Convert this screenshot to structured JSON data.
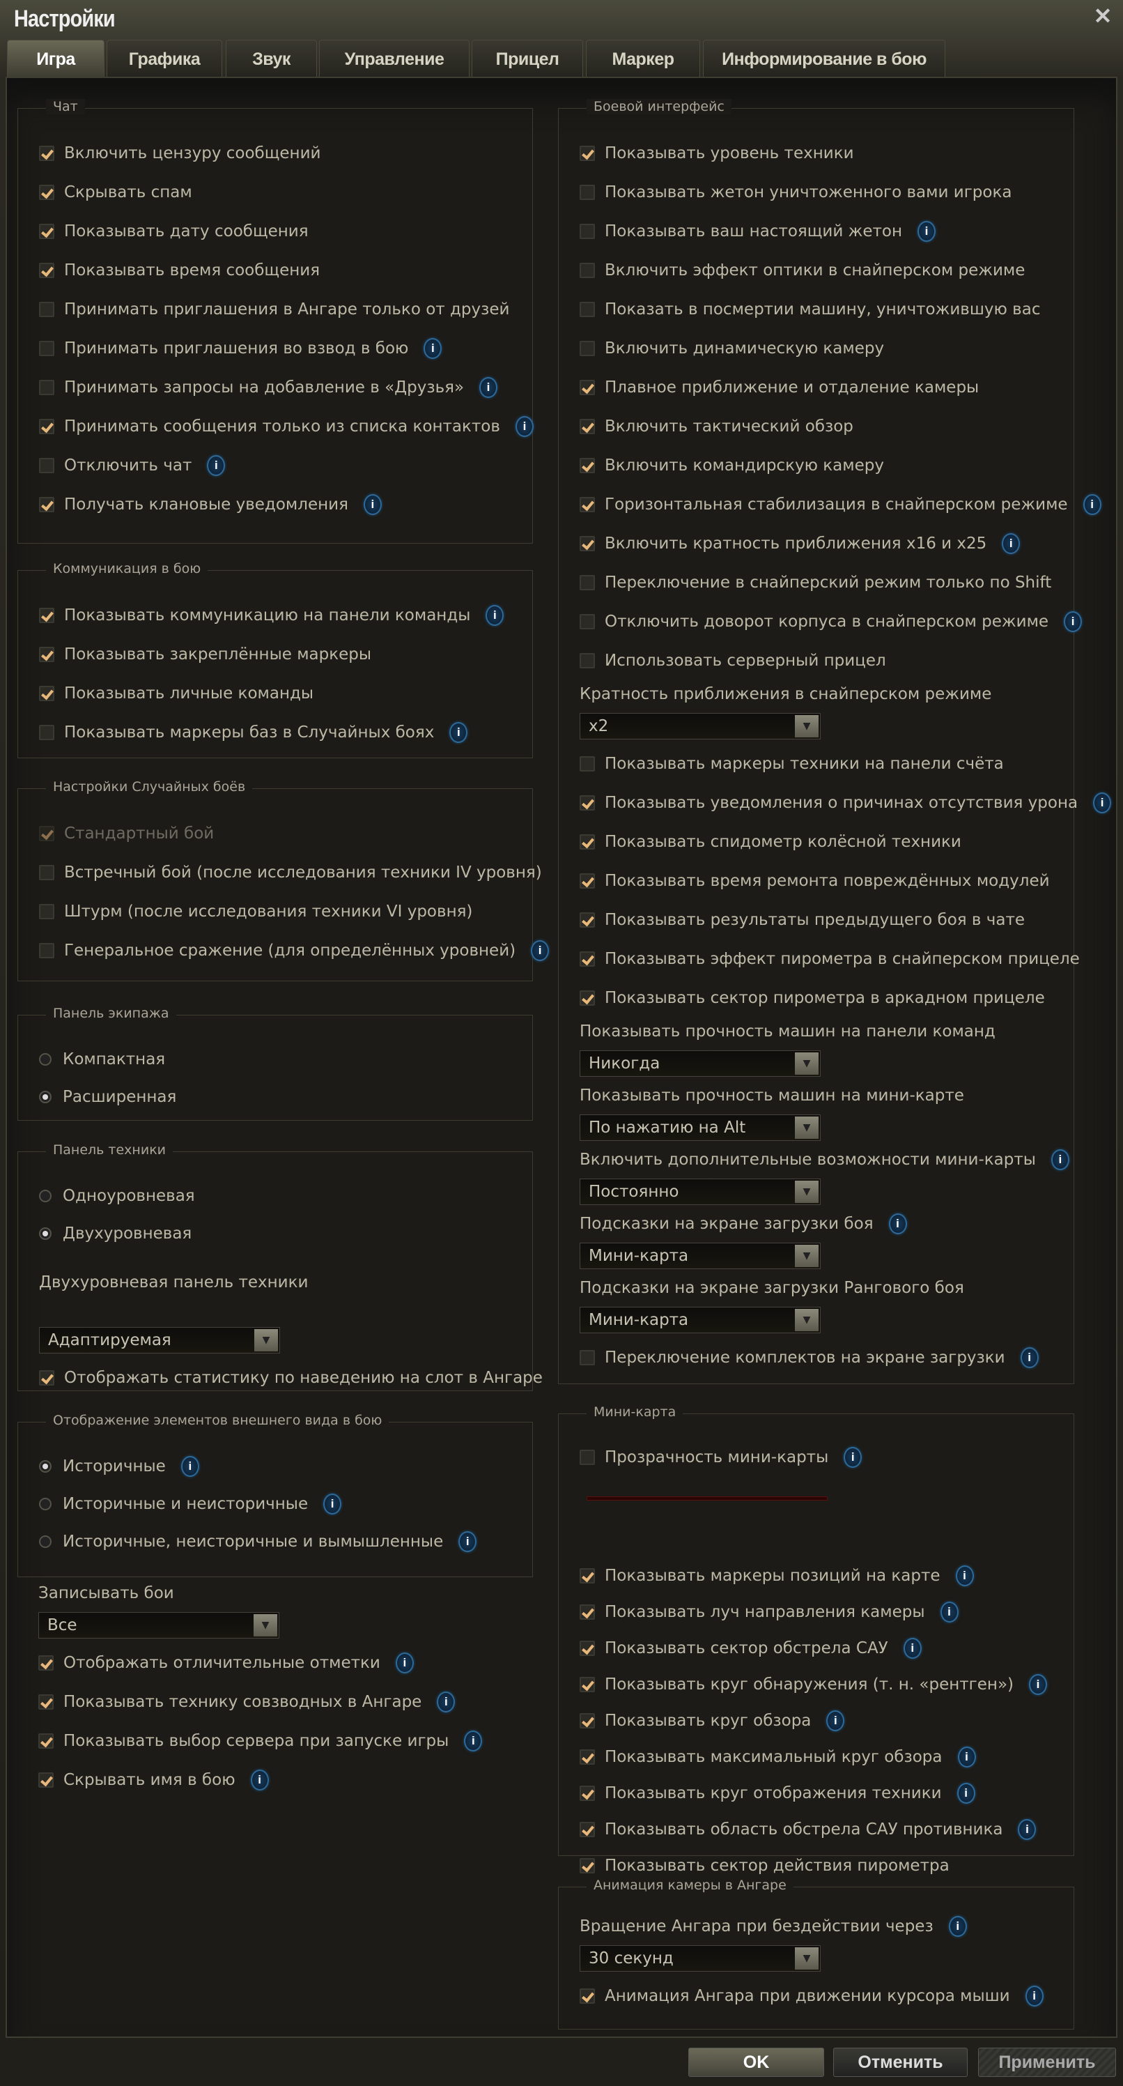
{
  "window": {
    "title": "Настройки",
    "close_icon": "close-icon"
  },
  "tabs": [
    {
      "label": "Игра",
      "active": true
    },
    {
      "label": "Графика"
    },
    {
      "label": "Звук"
    },
    {
      "label": "Управление"
    },
    {
      "label": "Прицел"
    },
    {
      "label": "Маркер"
    },
    {
      "label": "Информирование в бою"
    }
  ],
  "groups": [
    {
      "title": "Чат",
      "items": [
        {
          "t": "cb",
          "label": "Включить цензуру сообщений",
          "on": true
        },
        {
          "t": "cb",
          "label": "Скрывать спам",
          "on": true
        },
        {
          "t": "cb",
          "label": "Показывать дату сообщения",
          "on": true
        },
        {
          "t": "cb",
          "label": "Показывать время сообщения",
          "on": true
        },
        {
          "t": "cb",
          "label": "Принимать приглашения в Ангаре только от друзей",
          "on": false
        },
        {
          "t": "cb",
          "label": "Принимать приглашения во взвод в бою",
          "on": false,
          "info": true
        },
        {
          "t": "cb",
          "label": "Принимать запросы на добавление в «Друзья»",
          "on": false,
          "info": true
        },
        {
          "t": "cb",
          "label": "Принимать сообщения только из списка контактов",
          "on": true,
          "info": true
        },
        {
          "t": "cb",
          "label": "Отключить чат",
          "on": false,
          "info": true
        },
        {
          "t": "cb",
          "label": "Получать клановые уведомления",
          "on": true,
          "info": true
        }
      ]
    },
    {
      "title": "Коммуникация в бою",
      "items": [
        {
          "t": "cb",
          "label": "Показывать коммуникацию на панели команды",
          "on": true,
          "info": true
        },
        {
          "t": "cb",
          "label": "Показывать закреплённые маркеры",
          "on": true
        },
        {
          "t": "cb",
          "label": "Показывать личные команды",
          "on": true
        },
        {
          "t": "cb",
          "label": "Показывать маркеры баз в Случайных боях",
          "on": false,
          "info": true
        }
      ]
    },
    {
      "title": "Настройки Случайных боёв",
      "items": [
        {
          "t": "cb",
          "label": "Стандартный бой",
          "on": true,
          "disabled": true
        },
        {
          "t": "cb",
          "label": "Встречный бой (после исследования техники IV уровня)",
          "on": false
        },
        {
          "t": "cb",
          "label": "Штурм (после исследования техники VI уровня)",
          "on": false
        },
        {
          "t": "cb",
          "label": "Генеральное сражение (для определённых уровней)",
          "on": false,
          "info": true
        }
      ]
    },
    {
      "title": "Панель экипажа",
      "items": [
        {
          "t": "rd",
          "label": "Компактная",
          "on": false
        },
        {
          "t": "rd",
          "label": "Расширенная",
          "on": true
        }
      ]
    },
    {
      "title": "Панель техники",
      "items": [
        {
          "t": "rd",
          "label": "Одноуровневая",
          "on": false
        },
        {
          "t": "rd",
          "label": "Двухуровневая",
          "on": true
        },
        {
          "t": "sp",
          "label": "Двухуровневая панель техники"
        },
        {
          "t": "dd",
          "value": "Адаптируемая"
        },
        {
          "t": "cb",
          "label": "Отображать статистику по наведению на слот в Ангаре",
          "on": true
        }
      ]
    },
    {
      "title": "Отображение элементов внешнего вида в бою",
      "items": [
        {
          "t": "rd",
          "label": "Историчные",
          "on": true,
          "info": true
        },
        {
          "t": "rd",
          "label": "Историчные и неисторичные",
          "on": false,
          "info": true
        },
        {
          "t": "rd",
          "label": "Историчные, неисторичные и вымышленные",
          "on": false,
          "info": true
        }
      ]
    },
    {
      "title": "",
      "items": [
        {
          "t": "lbl",
          "label": "Записывать бои"
        },
        {
          "t": "dd",
          "value": "Все"
        },
        {
          "t": "cb",
          "label": "Отображать отличительные отметки",
          "on": true,
          "info": true
        },
        {
          "t": "cb",
          "label": "Показывать технику совзводных в Ангаре",
          "on": true,
          "info": true
        },
        {
          "t": "cb",
          "label": "Показывать выбор сервера при запуске игры",
          "on": true,
          "info": true
        },
        {
          "t": "cb",
          "label": "Скрывать имя в бою",
          "on": true,
          "info": true
        }
      ]
    },
    {
      "title": "Боевой интерфейс",
      "items": [
        {
          "t": "cb",
          "label": "Показывать уровень техники",
          "on": true
        },
        {
          "t": "cb",
          "label": "Показывать жетон уничтоженного вами игрока",
          "on": false
        },
        {
          "t": "cb",
          "label": "Показывать ваш настоящий жетон",
          "on": false,
          "info": true
        },
        {
          "t": "cb",
          "label": "Включить эффект оптики в снайперском режиме",
          "on": false
        },
        {
          "t": "cb",
          "label": "Показать в посмертии машину, уничтожившую вас",
          "on": false
        },
        {
          "t": "cb",
          "label": "Включить динамическую камеру",
          "on": false
        },
        {
          "t": "cb",
          "label": "Плавное приближение и отдаление камеры",
          "on": true
        },
        {
          "t": "cb",
          "label": "Включить тактический обзор",
          "on": true
        },
        {
          "t": "cb",
          "label": "Включить командирскую камеру",
          "on": true
        },
        {
          "t": "cb",
          "label": "Горизонтальная стабилизация в снайперском режиме",
          "on": true,
          "info": true
        },
        {
          "t": "cb",
          "label": "Включить кратность приближения x16 и x25",
          "on": true,
          "info": true
        },
        {
          "t": "cb",
          "label": "Переключение в снайперский режим только по Shift",
          "on": false
        },
        {
          "t": "cb",
          "label": "Отключить доворот корпуса в снайперском режиме",
          "on": false,
          "info": true
        },
        {
          "t": "cb",
          "label": "Использовать серверный прицел",
          "on": false
        },
        {
          "t": "lbl",
          "label": "Кратность приближения в снайперском режиме"
        },
        {
          "t": "dd",
          "value": "x2"
        },
        {
          "t": "cb",
          "label": "Показывать маркеры техники на панели счёта",
          "on": false
        },
        {
          "t": "cb",
          "label": "Показывать уведомления о причинах отсутствия урона",
          "on": true,
          "info": true
        },
        {
          "t": "cb",
          "label": "Показывать спидометр колёсной техники",
          "on": true
        },
        {
          "t": "cb",
          "label": "Показывать время ремонта повреждённых модулей",
          "on": true
        },
        {
          "t": "cb",
          "label": "Показывать результаты предыдущего боя в чате",
          "on": true
        },
        {
          "t": "cb",
          "label": "Показывать эффект пирометра в снайперском прицеле",
          "on": true
        },
        {
          "t": "cb",
          "label": "Показывать сектор пирометра в аркадном прицеле",
          "on": true
        },
        {
          "t": "lbl",
          "label": "Показывать прочность машин на панели команд"
        },
        {
          "t": "dd",
          "value": "Никогда"
        },
        {
          "t": "lbl",
          "label": "Показывать прочность машин на мини-карте"
        },
        {
          "t": "dd",
          "value": "По нажатию на Alt"
        },
        {
          "t": "lbl",
          "label": "Включить дополнительные возможности мини-карты",
          "info": true
        },
        {
          "t": "dd",
          "value": "Постоянно"
        },
        {
          "t": "lbl",
          "label": "Подсказки на экране загрузки боя",
          "info": true
        },
        {
          "t": "dd",
          "value": "Мини-карта"
        },
        {
          "t": "lbl",
          "label": "Подсказки на экране загрузки Рангового боя"
        },
        {
          "t": "dd",
          "value": "Мини-карта"
        },
        {
          "t": "cb",
          "label": "Переключение комплектов на экране загрузки",
          "on": false,
          "info": true
        }
      ]
    },
    {
      "title": "Мини-карта",
      "items": [
        {
          "t": "cb",
          "label": "Прозрачность мини-карты",
          "on": false,
          "info": true
        },
        {
          "t": "slider",
          "value": 0
        },
        {
          "t": "cb",
          "label": "Показывать маркеры позиций на карте",
          "on": true,
          "info": true
        },
        {
          "t": "cb",
          "label": "Показывать луч направления камеры",
          "on": true,
          "info": true
        },
        {
          "t": "cb",
          "label": "Показывать сектор обстрела САУ",
          "on": true,
          "info": true
        },
        {
          "t": "cb",
          "label": "Показывать круг обнаружения (т. н. «рентген»)",
          "on": true,
          "info": true
        },
        {
          "t": "cb",
          "label": "Показывать круг обзора",
          "on": true,
          "info": true
        },
        {
          "t": "cb",
          "label": "Показывать максимальный круг обзора",
          "on": true,
          "info": true
        },
        {
          "t": "cb",
          "label": "Показывать круг отображения техники",
          "on": true,
          "info": true
        },
        {
          "t": "cb",
          "label": "Показывать область обстрела САУ противника",
          "on": true,
          "info": true
        },
        {
          "t": "cb",
          "label": "Показывать сектор действия пирометра",
          "on": true
        }
      ]
    },
    {
      "title": "Анимация камеры в Ангаре",
      "items": [
        {
          "t": "lbl",
          "label": "Вращение Ангара при бездействии через",
          "info": true
        },
        {
          "t": "dd",
          "value": "30 секунд"
        },
        {
          "t": "cb",
          "label": "Анимация Ангара при движении курсора мыши",
          "on": true,
          "info": true
        }
      ]
    }
  ],
  "buttons": {
    "ok": "OK",
    "cancel": "Отменить",
    "apply": "Применить"
  }
}
